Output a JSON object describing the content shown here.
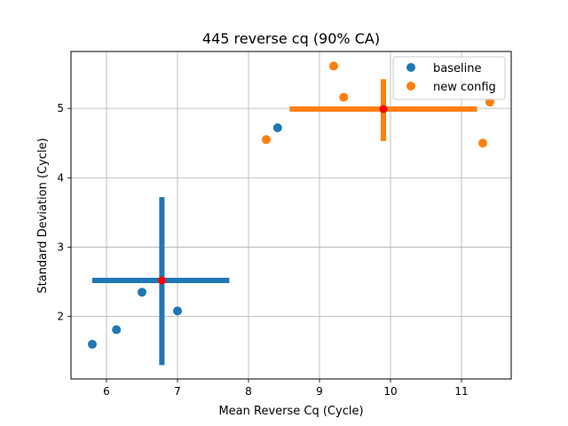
{
  "chart_data": {
    "type": "scatter",
    "title": "445 reverse cq (90% CA)",
    "xlabel": "Mean Reverse Cq (Cycle)",
    "ylabel": "Standard Deviation (Cycle)",
    "xlim": [
      5.5,
      11.7
    ],
    "ylim": [
      1.1,
      5.82
    ],
    "xticks": [
      6,
      7,
      8,
      9,
      10,
      11
    ],
    "yticks": [
      2,
      3,
      4,
      5
    ],
    "grid": true,
    "legend_position": "upper right",
    "series": [
      {
        "name": "baseline",
        "color": "#1f77b4",
        "points": [
          [
            5.8,
            1.6
          ],
          [
            6.14,
            1.81
          ],
          [
            6.5,
            2.35
          ],
          [
            7.0,
            2.08
          ],
          [
            8.41,
            4.72
          ]
        ],
        "center": [
          6.78,
          2.52
        ],
        "error_x": [
          5.8,
          7.73
        ],
        "error_y": [
          1.3,
          3.72
        ]
      },
      {
        "name": "new config",
        "color": "#ff7f0e",
        "points": [
          [
            8.25,
            4.55
          ],
          [
            9.2,
            5.61
          ],
          [
            9.34,
            5.16
          ],
          [
            11.3,
            4.5
          ],
          [
            11.4,
            5.09
          ]
        ],
        "center": [
          9.9,
          4.99
        ],
        "error_x": [
          8.58,
          11.22
        ],
        "error_y": [
          4.53,
          5.42
        ]
      }
    ],
    "center_marker_color": "#ff0000"
  }
}
